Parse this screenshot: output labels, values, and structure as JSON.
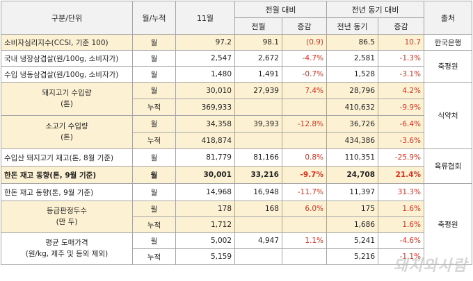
{
  "header": {
    "category": "구분/단위",
    "month_cum": "월/누적",
    "nov": "11월",
    "vs_prev_month": "전월 대비",
    "vs_prev_year": "전년 동기 대비",
    "prev_month": "전월",
    "change": "증감",
    "prev_year": "전년 동기",
    "change2": "증감",
    "source": "출처"
  },
  "rows": [
    {
      "label": "소비자심리지수(CCSI, 기준 100)",
      "type": "월",
      "nov": "97.2",
      "prev_month": "98.1",
      "chg_month": "(0.9)",
      "prev_year": "86.5",
      "chg_year": "10.7"
    },
    {
      "label": "국내 냉장삼겹살(원/100g, 소비자가)",
      "type": "월",
      "nov": "2,547",
      "prev_month": "2,672",
      "chg_month": "-4.7%",
      "prev_year": "2,581",
      "chg_year": "-1.3%"
    },
    {
      "label": "수입 냉동삼겹살(원/100g, 소비자가)",
      "type": "월",
      "nov": "1,480",
      "prev_month": "1,491",
      "chg_month": "-0.7%",
      "prev_year": "1,528",
      "chg_year": "-3.1%"
    },
    {
      "label": "돼지고기 수입량\n(톤)",
      "type": "월",
      "nov": "30,010",
      "prev_month": "27,939",
      "chg_month": "7.4%",
      "prev_year": "28,796",
      "chg_year": "4.2%"
    },
    {
      "label": "",
      "type": "누적",
      "nov": "369,933",
      "prev_month": "",
      "chg_month": "",
      "prev_year": "410,632",
      "chg_year": "-9.9%"
    },
    {
      "label": "소고기 수입량\n(톤)",
      "type": "월",
      "nov": "34,358",
      "prev_month": "39,393",
      "chg_month": "-12.8%",
      "prev_year": "36,726",
      "chg_year": "-6.4%"
    },
    {
      "label": "",
      "type": "누적",
      "nov": "418,874",
      "prev_month": "",
      "chg_month": "",
      "prev_year": "434,386",
      "chg_year": "-3.6%"
    },
    {
      "label": "수입산 돼지고기 재고(톤, 8월 기준)",
      "type": "월",
      "nov": "81,779",
      "prev_month": "81,166",
      "chg_month": "0.8%",
      "prev_year": "110,351",
      "chg_year": "-25.9%"
    },
    {
      "label": "한돈 재고 동향(톤, 9월 기준)",
      "type": "월",
      "nov": "30,001",
      "prev_month": "33,216",
      "chg_month": "-9.7%",
      "prev_year": "24,708",
      "chg_year": "21.4%"
    },
    {
      "label": "한돈 재고 동향(톤, 9월 기준)",
      "type": "월",
      "nov": "14,968",
      "prev_month": "16,948",
      "chg_month": "-11.7%",
      "prev_year": "11,397",
      "chg_year": "31.3%"
    },
    {
      "label": "등급판정두수\n(만 두)",
      "type": "월",
      "nov": "178",
      "prev_month": "168",
      "chg_month": "6.0%",
      "prev_year": "175",
      "chg_year": "1.6%"
    },
    {
      "label": "",
      "type": "누적",
      "nov": "1,712",
      "prev_month": "",
      "chg_month": "",
      "prev_year": "1,686",
      "chg_year": "1.6%"
    },
    {
      "label": "평균 도매가격\n(원/kg, 제주 및 등외 제외)",
      "type": "월",
      "nov": "5,002",
      "prev_month": "4,947",
      "chg_month": "1.1%",
      "prev_year": "5,241",
      "chg_year": "-4.6%"
    },
    {
      "label": "",
      "type": "누적",
      "nov": "5,159",
      "prev_month": "",
      "chg_month": "",
      "prev_year": "5,216",
      "chg_year": "-1.1%"
    }
  ],
  "sources": {
    "bok": "한국은행",
    "kape1": "축평원",
    "customs": "식약처",
    "livestock": "육류협회",
    "kape2": "축평원"
  },
  "watermark": "돼지와사람"
}
